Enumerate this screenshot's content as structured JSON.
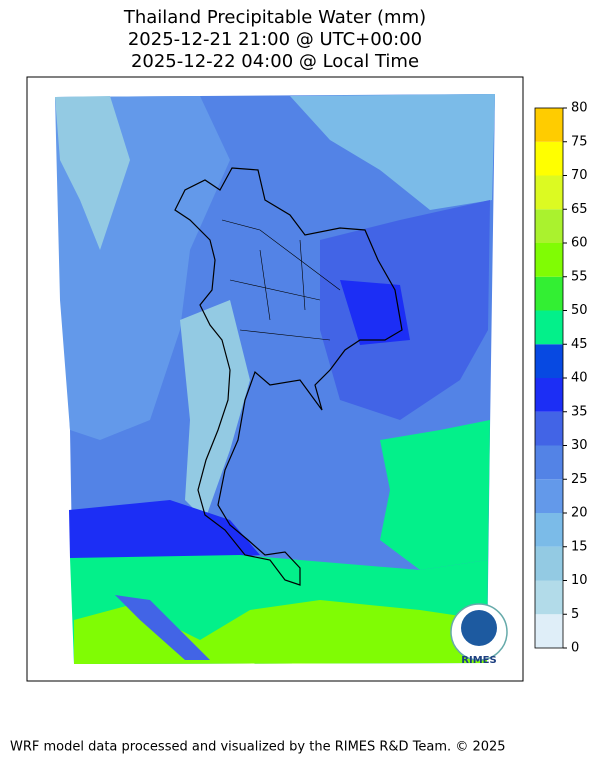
{
  "chart_data": {
    "type": "colorbar",
    "title": "Thailand Precipitable Water (mm)",
    "subtitle_lines": [
      "2025-12-21 21:00 @ UTC+00:00",
      "2025-12-22 04:00 @ Local Time"
    ],
    "bins": [
      0,
      5,
      10,
      15,
      20,
      25,
      30,
      35,
      40,
      45,
      50,
      55,
      60,
      65,
      70,
      75,
      80
    ],
    "colors": [
      "#dfeef8",
      "#b2dbe9",
      "#93cae3",
      "#7bbbe8",
      "#6399ea",
      "#5383e6",
      "#4264e6",
      "#1c2ef5",
      "#0749e2",
      "#03f08a",
      "#33ef33",
      "#80fc04",
      "#aaf22e",
      "#dcfa22",
      "#ffff00",
      "#ffcc00"
    ],
    "ylim": [
      0,
      80
    ],
    "yticks": [
      0,
      5,
      10,
      15,
      20,
      25,
      30,
      35,
      40,
      45,
      50,
      55,
      60,
      65,
      70,
      75,
      80
    ]
  },
  "logo_text": "RIMES",
  "footer": "WRF model data processed and visualized by the RIMES R&D Team. © 2025"
}
